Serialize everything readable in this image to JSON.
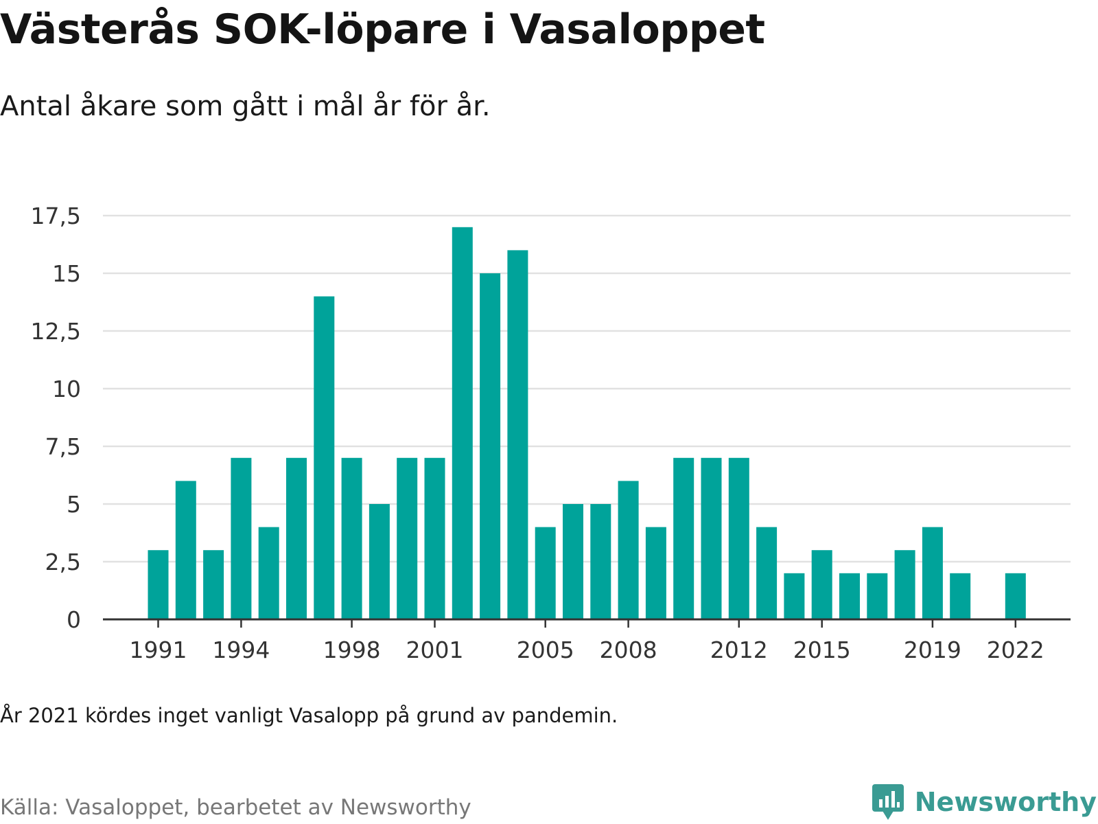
{
  "header": {
    "title": "Västerås SOK-löpare i Vasaloppet",
    "subtitle": "Antal åkare som gått i mål år för år."
  },
  "footer": {
    "note": "År 2021 kördes inget vanligt Vasalopp på grund av pandemin.",
    "source": "Källa: Vasaloppet, bearbetet av Newsworthy",
    "logo_text": "Newsworthy",
    "logo_icon": "bar-chart-speech-bubble-icon"
  },
  "colors": {
    "bar": "#00a39a",
    "logo": "#3a9b93"
  },
  "chart_data": {
    "type": "bar",
    "title": "Västerås SOK-löpare i Vasaloppet",
    "subtitle": "Antal åkare som gått i mål år för år.",
    "xlabel": "",
    "ylabel": "",
    "ylim": [
      0,
      17.5
    ],
    "yticks": [
      0,
      2.5,
      5,
      7.5,
      10,
      12.5,
      15,
      17.5
    ],
    "ytick_labels": [
      "0",
      "2,5",
      "5",
      "7,5",
      "10",
      "12,5",
      "15",
      "17,5"
    ],
    "xtick_labels": [
      "1991",
      "1994",
      "1998",
      "2001",
      "2005",
      "2008",
      "2012",
      "2015",
      "2019",
      "2022"
    ],
    "grid": true,
    "legend": "none",
    "categories": [
      "1991",
      "1992",
      "1993",
      "1994",
      "1995",
      "1996",
      "1997",
      "1998",
      "1999",
      "2000",
      "2001",
      "2002",
      "2003",
      "2004",
      "2005",
      "2006",
      "2007",
      "2008",
      "2009",
      "2010",
      "2011",
      "2012",
      "2013",
      "2014",
      "2015",
      "2016",
      "2017",
      "2018",
      "2019",
      "2020",
      "2021",
      "2022"
    ],
    "values": [
      3,
      6,
      3,
      7,
      4,
      7,
      14,
      7,
      5,
      7,
      7,
      17,
      15,
      16,
      4,
      5,
      5,
      6,
      4,
      7,
      7,
      7,
      4,
      2,
      3,
      2,
      2,
      3,
      4,
      2,
      null,
      2
    ]
  }
}
